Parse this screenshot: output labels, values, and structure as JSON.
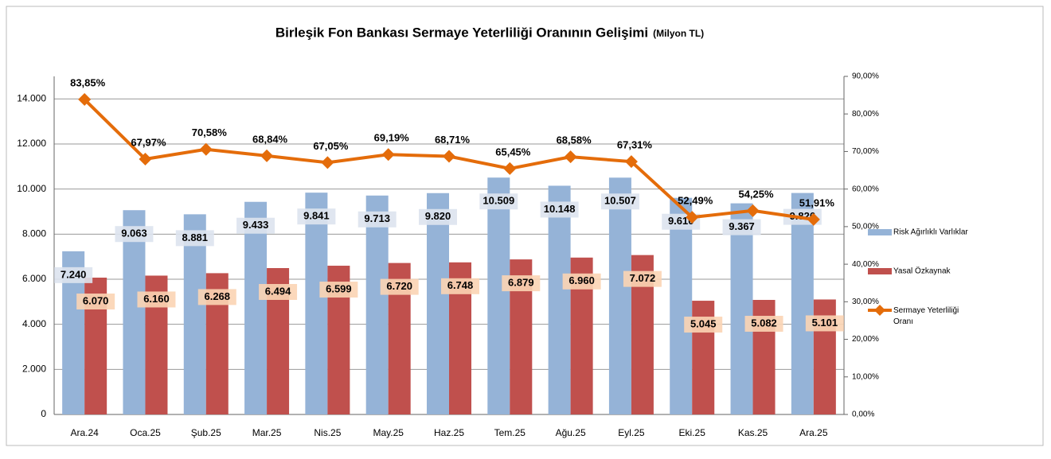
{
  "chart_data": {
    "type": "bar-line",
    "title": "Birleşik Fon Bankası Sermaye Yeterliliği Oranının Gelişimi",
    "unit": "(Milyon TL)",
    "categories": [
      "Ara.24",
      "Oca.25",
      "Şub.25",
      "Mar.25",
      "Nis.25",
      "May.25",
      "Haz.25",
      "Tem.25",
      "Ağu.25",
      "Eyl.25",
      "Eki.25",
      "Kas.25",
      "Ara.25"
    ],
    "series": [
      {
        "name": "Risk Ağırlıklı Varlıklar",
        "color": "#95b3d7",
        "type": "bar",
        "values": [
          7240,
          9063,
          8881,
          9433,
          9841,
          9713,
          9820,
          10509,
          10148,
          10507,
          9610,
          9367,
          9826
        ],
        "value_labels": [
          "7.240",
          "9.063",
          "8.881",
          "9.433",
          "9.841",
          "9.713",
          "9.820",
          "10.509",
          "10.148",
          "10.507",
          "9.610",
          "9.367",
          "9.826"
        ]
      },
      {
        "name": "Yasal Özkaynak",
        "color": "#c0504d",
        "type": "bar",
        "values": [
          6070,
          6160,
          6268,
          6494,
          6599,
          6720,
          6748,
          6879,
          6960,
          7072,
          5045,
          5082,
          5101
        ],
        "value_labels": [
          "6.070",
          "6.160",
          "6.268",
          "6.494",
          "6.599",
          "6.720",
          "6.748",
          "6.879",
          "6.960",
          "7.072",
          "5.045",
          "5.082",
          "5.101"
        ]
      },
      {
        "name": "Sermaye Yeterliliği Oranı",
        "color": "#e46c0a",
        "type": "line",
        "axis": "y2",
        "values": [
          83.85,
          67.97,
          70.58,
          68.84,
          67.05,
          69.19,
          68.71,
          65.45,
          68.58,
          67.31,
          52.49,
          54.25,
          51.91
        ],
        "value_labels": [
          "83,85%",
          "67,97%",
          "70,58%",
          "68,84%",
          "67,05%",
          "69,19%",
          "68,71%",
          "65,45%",
          "68,58%",
          "67,31%",
          "52,49%",
          "54,25%",
          "51,91%"
        ]
      }
    ],
    "ylim": [
      0,
      15000
    ],
    "yticks": [
      0,
      {
        "value": 2000,
        "label": "2.000"
      },
      {
        "value": 4000,
        "label": "4.000"
      },
      {
        "value": 6000,
        "label": "6.000"
      },
      {
        "value": 8000,
        "label": "8.000"
      },
      {
        "value": 10000,
        "label": "10.000"
      },
      {
        "value": 12000,
        "label": "12.000"
      },
      {
        "value": 14000,
        "label": "14.000"
      }
    ],
    "y2lim": [
      0,
      90
    ],
    "y2ticks": [
      {
        "value": 0,
        "label": "0,00%"
      },
      {
        "value": 10,
        "label": "10,00%"
      },
      {
        "value": 20,
        "label": "20,00%"
      },
      {
        "value": 30,
        "label": "30,00%"
      },
      {
        "value": 40,
        "label": "40,00%"
      },
      {
        "value": 50,
        "label": "50,00%"
      },
      {
        "value": 60,
        "label": "60,00%"
      },
      {
        "value": 70,
        "label": "70,00%"
      },
      {
        "value": 80,
        "label": "80,00%"
      },
      {
        "value": 90,
        "label": "90,00%"
      }
    ],
    "grid": true,
    "legend": "right"
  }
}
